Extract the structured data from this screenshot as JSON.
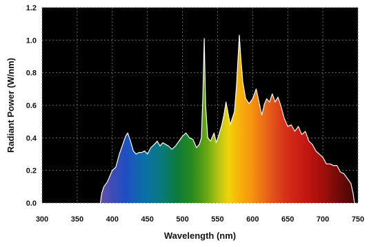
{
  "chart_data": {
    "type": "area",
    "xlabel": "Wavelength (nm)",
    "ylabel": "Radiant Power (W/nm)",
    "xlim": [
      300,
      750
    ],
    "ylim": [
      0,
      1.2
    ],
    "xticks": [
      "300",
      "350",
      "400",
      "450",
      "500",
      "550",
      "600",
      "650",
      "700",
      "750"
    ],
    "yticks": [
      "0.0",
      "0.2",
      "0.4",
      "0.6",
      "0.8",
      "1.0",
      "1.2"
    ],
    "grid": true,
    "plot_background": "#000000",
    "series": [
      {
        "fill": "visible-spectrum gradient",
        "outline_color": "#ffffff",
        "x": [
          383,
          385,
          388,
          393,
          400,
          405,
          410,
          415,
          419,
          422,
          426,
          430,
          434,
          438,
          442,
          446,
          450,
          455,
          460,
          464,
          468,
          472,
          476,
          480,
          485,
          490,
          495,
          500,
          505,
          510,
          515,
          520,
          524,
          527,
          529,
          531,
          533,
          536,
          540,
          545,
          548,
          552,
          556,
          559,
          562,
          565,
          568,
          571,
          574,
          577,
          579,
          581,
          583,
          586,
          590,
          595,
          600,
          605,
          610,
          613,
          617,
          620,
          624,
          628,
          632,
          636,
          640,
          645,
          650,
          655,
          660,
          665,
          670,
          675,
          680,
          685,
          690,
          695,
          700,
          705,
          710,
          715,
          720,
          725,
          730,
          735,
          740,
          743,
          745
        ],
        "y": [
          0.0,
          0.06,
          0.1,
          0.13,
          0.2,
          0.22,
          0.3,
          0.36,
          0.41,
          0.43,
          0.38,
          0.32,
          0.3,
          0.31,
          0.31,
          0.32,
          0.3,
          0.34,
          0.36,
          0.38,
          0.35,
          0.37,
          0.36,
          0.35,
          0.33,
          0.35,
          0.38,
          0.41,
          0.43,
          0.4,
          0.39,
          0.34,
          0.36,
          0.4,
          0.65,
          1.01,
          0.6,
          0.4,
          0.38,
          0.43,
          0.37,
          0.42,
          0.48,
          0.54,
          0.62,
          0.55,
          0.48,
          0.52,
          0.56,
          0.72,
          0.88,
          1.03,
          0.9,
          0.74,
          0.64,
          0.61,
          0.64,
          0.7,
          0.6,
          0.54,
          0.61,
          0.64,
          0.62,
          0.67,
          0.62,
          0.65,
          0.6,
          0.52,
          0.47,
          0.48,
          0.44,
          0.47,
          0.42,
          0.44,
          0.38,
          0.36,
          0.32,
          0.3,
          0.28,
          0.24,
          0.24,
          0.23,
          0.23,
          0.19,
          0.18,
          0.15,
          0.12,
          0.06,
          0.0
        ]
      }
    ]
  }
}
